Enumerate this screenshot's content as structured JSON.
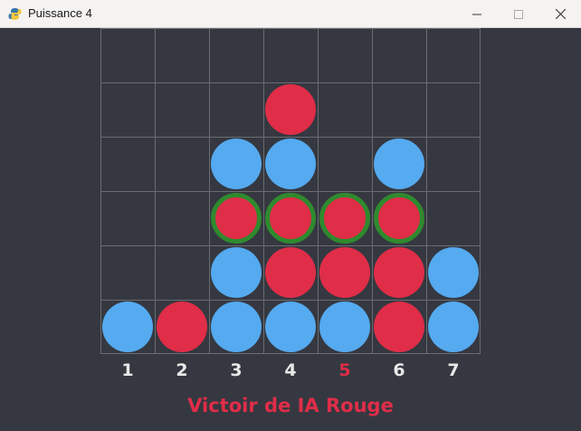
{
  "window": {
    "title": "Puissance 4",
    "icon": "python-snake-icon",
    "controls": [
      "minimize-icon",
      "maximize-icon",
      "close-icon"
    ]
  },
  "colors": {
    "background": "#353840",
    "grid": "#6a6c70",
    "blue": "#55aaf0",
    "red": "#e02d48",
    "win_ring": "#2f8a2e",
    "label": "#e8e8e8",
    "active_label": "#e02d48"
  },
  "board": {
    "rows": 6,
    "cols": 7,
    "cells": [
      [
        "",
        "",
        "",
        "",
        "",
        "",
        ""
      ],
      [
        "",
        "",
        "",
        "R",
        "",
        "",
        ""
      ],
      [
        "",
        "",
        "B",
        "B",
        "",
        "B",
        ""
      ],
      [
        "",
        "",
        "RW",
        "RW",
        "RW",
        "RW",
        ""
      ],
      [
        "",
        "",
        "B",
        "R",
        "R",
        "R",
        "B"
      ],
      [
        "B",
        "R",
        "B",
        "B",
        "B",
        "R",
        "B"
      ]
    ]
  },
  "columns": {
    "labels": [
      "1",
      "2",
      "3",
      "4",
      "5",
      "6",
      "7"
    ],
    "active_index": 4
  },
  "status": {
    "message": "Victoir de IA Rouge"
  }
}
